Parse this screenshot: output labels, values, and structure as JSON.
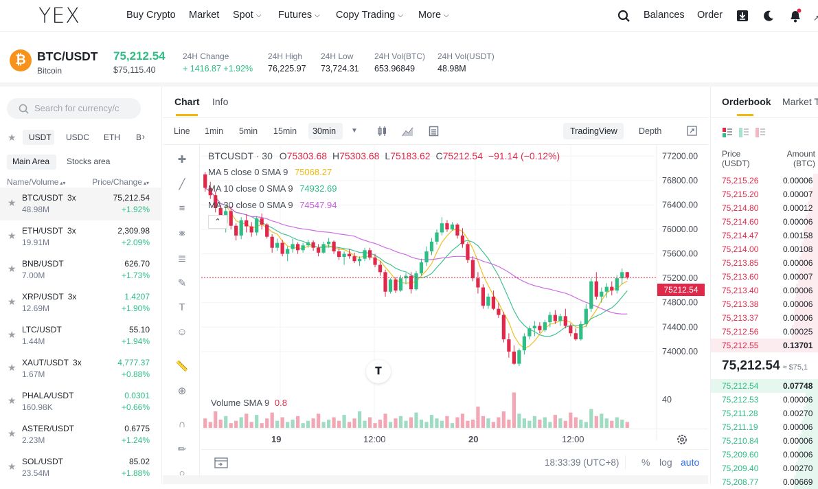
{
  "nav": {
    "logo": "YEX",
    "items": [
      {
        "label": "Buy Crypto",
        "has_menu": false
      },
      {
        "label": "Market",
        "has_menu": false
      },
      {
        "label": "Spot",
        "has_menu": true
      },
      {
        "label": "Futures",
        "has_menu": true
      },
      {
        "label": "Copy Trading",
        "has_menu": true
      },
      {
        "label": "More",
        "has_menu": true
      }
    ],
    "right": {
      "balances": "Balances",
      "order": "Order"
    }
  },
  "ticker": {
    "pair": "BTC/USDT",
    "name": "Bitcoin",
    "last_price": "75,212.54",
    "fiat_price": "$75,115.40",
    "stats": [
      {
        "label": "24H Change",
        "value": "+ 1416.87 +1.92%",
        "color": "#2ebd85"
      },
      {
        "label": "24H High",
        "value": "76,225.97"
      },
      {
        "label": "24H Low",
        "value": "73,724.31"
      },
      {
        "label": "24H Vol(BTC)",
        "value": "653.96849"
      },
      {
        "label": "24H Vol(USDT)",
        "value": "48.98M"
      }
    ]
  },
  "markets": {
    "search_placeholder": "Search for currency/c",
    "quote_tabs": [
      "USDT",
      "USDC",
      "ETH",
      "B"
    ],
    "area_tabs": [
      "Main Area",
      "Stocks area"
    ],
    "col_headers": {
      "left": "Name/Volume",
      "right": "Price/Change"
    },
    "rows": [
      {
        "pair": "BTC/USDT",
        "lev": "3x",
        "vol": "48.98M",
        "price": "75,212.54",
        "chg": "+1.92%",
        "price_color": "#1e2329"
      },
      {
        "pair": "ETH/USDT",
        "lev": "3x",
        "vol": "19.91M",
        "price": "2,309.98",
        "chg": "+2.09%",
        "price_color": "#1e2329"
      },
      {
        "pair": "BNB/USDT",
        "lev": "",
        "vol": "7.00M",
        "price": "626.70",
        "chg": "+1.73%",
        "price_color": "#1e2329"
      },
      {
        "pair": "XRP/USDT",
        "lev": "3x",
        "vol": "12.69M",
        "price": "1.4207",
        "chg": "+1.90%",
        "price_color": "#2ebd85"
      },
      {
        "pair": "LTC/USDT",
        "lev": "",
        "vol": "1.44M",
        "price": "55.10",
        "chg": "+1.94%",
        "price_color": "#1e2329"
      },
      {
        "pair": "XAUT/USDT",
        "lev": "3x",
        "vol": "1.67M",
        "price": "4,777.37",
        "chg": "+0.88%",
        "price_color": "#2ebd85"
      },
      {
        "pair": "PHALA/USDT",
        "lev": "",
        "vol": "160.98K",
        "price": "0.0301",
        "chg": "+0.66%",
        "price_color": "#2ebd85"
      },
      {
        "pair": "ASTER/USDT",
        "lev": "",
        "vol": "2.23M",
        "price": "0.6775",
        "chg": "+1.24%",
        "price_color": "#1e2329"
      },
      {
        "pair": "SOL/USDT",
        "lev": "",
        "vol": "23.54M",
        "price": "85.02",
        "chg": "+1.88%",
        "price_color": "#1e2329"
      }
    ]
  },
  "chart_panel": {
    "tabs": [
      "Chart",
      "Info"
    ],
    "timeframes": [
      "Line",
      "1min",
      "5min",
      "15min",
      "30min"
    ],
    "view_modes": [
      "TradingView",
      "Depth"
    ],
    "legend": {
      "symbol": "BTCUSDT · 30",
      "o": "75303.68",
      "h": "75303.68",
      "l": "75183.62",
      "c": "75212.54",
      "chg": "−91.14 (−0.12%)",
      "ma5_label": "MA 5 close 0 SMA 9",
      "ma5_value": "75068.27",
      "ma10_label": "MA 10 close 0 SMA 9",
      "ma10_value": "74932.69",
      "ma30_label": "MA 30 close 0 SMA 9",
      "ma30_value": "74547.94"
    },
    "volume_label": "Volume SMA 9",
    "volume_value": "0.8",
    "volume_axis": "40",
    "price_badge": "75212.54",
    "x_labels": [
      "19",
      "12:00",
      "20",
      "12:00"
    ],
    "time": "18:33:39 (UTC+8)",
    "bottom_opts": [
      "%",
      "log",
      "auto"
    ]
  },
  "chart_data": {
    "type": "candlestick",
    "title": "",
    "y_ticks": [
      77200,
      76800,
      76400,
      76000,
      75600,
      75200,
      74800,
      74400,
      74000
    ],
    "ylim": [
      73650,
      77350
    ],
    "x_ticks": [
      "19",
      "12:00",
      "20",
      "12:00"
    ],
    "candles": [
      [
        76900,
        76940,
        76620,
        76680
      ],
      [
        76680,
        76780,
        76500,
        76560
      ],
      [
        76560,
        76620,
        76280,
        76350
      ],
      [
        76350,
        76400,
        76050,
        76100
      ],
      [
        76100,
        76400,
        75950,
        76300
      ],
      [
        76300,
        76380,
        76000,
        76060
      ],
      [
        76060,
        76100,
        75820,
        75900
      ],
      [
        75900,
        76200,
        75840,
        76150
      ],
      [
        76150,
        76250,
        75950,
        76050
      ],
      [
        76050,
        76120,
        75880,
        75950
      ],
      [
        75950,
        76220,
        75900,
        76180
      ],
      [
        76180,
        76260,
        76000,
        76080
      ],
      [
        76080,
        76100,
        75850,
        75880
      ],
      [
        75880,
        75920,
        75620,
        75700
      ],
      [
        75700,
        75850,
        75650,
        75780
      ],
      [
        75780,
        75830,
        75560,
        75600
      ],
      [
        75600,
        75720,
        75480,
        75680
      ],
      [
        75680,
        75850,
        75620,
        75760
      ],
      [
        75760,
        75790,
        75600,
        75660
      ],
      [
        75660,
        75780,
        75620,
        75740
      ],
      [
        75740,
        75830,
        75700,
        75790
      ],
      [
        75790,
        75820,
        75650,
        75700
      ],
      [
        75700,
        75760,
        75560,
        75620
      ],
      [
        75620,
        75800,
        75600,
        75760
      ],
      [
        75760,
        75860,
        75700,
        75800
      ],
      [
        75800,
        75820,
        75600,
        75640
      ],
      [
        75640,
        75700,
        75500,
        75550
      ],
      [
        75550,
        75640,
        75420,
        75600
      ],
      [
        75600,
        75680,
        75520,
        75560
      ],
      [
        75560,
        75620,
        75450,
        75480
      ],
      [
        75480,
        75560,
        75400,
        75520
      ],
      [
        75520,
        75700,
        75480,
        75660
      ],
      [
        75660,
        75700,
        75500,
        75540
      ],
      [
        75540,
        75600,
        75380,
        75420
      ],
      [
        75420,
        75480,
        75240,
        75300
      ],
      [
        75300,
        75340,
        74900,
        74980
      ],
      [
        74980,
        75200,
        74950,
        75180
      ],
      [
        75180,
        75220,
        74960,
        75000
      ],
      [
        75000,
        75250,
        74980,
        75200
      ],
      [
        75200,
        75280,
        75100,
        75240
      ],
      [
        75240,
        75300,
        74950,
        75020
      ],
      [
        75020,
        75320,
        75000,
        75280
      ],
      [
        75280,
        75520,
        75240,
        75460
      ],
      [
        75460,
        75720,
        75400,
        75640
      ],
      [
        75640,
        75860,
        75580,
        75800
      ],
      [
        75800,
        76000,
        75750,
        75950
      ],
      [
        75950,
        76200,
        75900,
        76100
      ],
      [
        76100,
        76150,
        75960,
        76000
      ],
      [
        76000,
        76120,
        75980,
        76080
      ],
      [
        76080,
        76100,
        75850,
        75900
      ],
      [
        75900,
        76020,
        75700,
        75760
      ],
      [
        75760,
        75800,
        75450,
        75500
      ],
      [
        75500,
        75560,
        75150,
        75200
      ],
      [
        75200,
        75300,
        74950,
        75050
      ],
      [
        75050,
        75100,
        74700,
        74750
      ],
      [
        74750,
        74950,
        74700,
        74900
      ],
      [
        74900,
        75000,
        74680,
        74700
      ],
      [
        74700,
        74800,
        74550,
        74600
      ],
      [
        74600,
        74650,
        74150,
        74200
      ],
      [
        74200,
        74300,
        73900,
        74000
      ],
      [
        74000,
        74100,
        73780,
        73800
      ],
      [
        73800,
        74050,
        73760,
        74020
      ],
      [
        74020,
        74300,
        73950,
        74250
      ],
      [
        74250,
        74420,
        74200,
        74380
      ],
      [
        74380,
        74500,
        74250,
        74420
      ],
      [
        74420,
        74480,
        74300,
        74350
      ],
      [
        74350,
        74520,
        74320,
        74480
      ],
      [
        74480,
        74650,
        74400,
        74600
      ],
      [
        74600,
        74680,
        74450,
        74500
      ],
      [
        74500,
        74620,
        74420,
        74580
      ],
      [
        74580,
        74700,
        74380,
        74420
      ],
      [
        74420,
        74460,
        74250,
        74300
      ],
      [
        74300,
        74380,
        74180,
        74200
      ],
      [
        74200,
        74500,
        74180,
        74450
      ],
      [
        74450,
        74780,
        74400,
        74700
      ],
      [
        74700,
        75200,
        74650,
        75150
      ],
      [
        75150,
        75300,
        74850,
        74900
      ],
      [
        74900,
        75050,
        74800,
        74980
      ],
      [
        74980,
        75120,
        74880,
        75060
      ],
      [
        75060,
        75150,
        74920,
        75000
      ],
      [
        75000,
        75250,
        74950,
        75200
      ],
      [
        75200,
        75360,
        75100,
        75300
      ],
      [
        75300,
        75303.68,
        75183.62,
        75212.54
      ]
    ],
    "ma_series": [
      {
        "name": "MA 5",
        "color": "#f0b90b"
      },
      {
        "name": "MA 10",
        "color": "#2ebd85"
      },
      {
        "name": "MA 30",
        "color": "#c85ce0"
      }
    ],
    "volumes": [
      8,
      5,
      14,
      7,
      10,
      4,
      6,
      9,
      12,
      5,
      11,
      4,
      8,
      13,
      6,
      9,
      5,
      7,
      10,
      4,
      6,
      8,
      12,
      5,
      7,
      9,
      6,
      11,
      5,
      8,
      14,
      6,
      9,
      4,
      7,
      12,
      5,
      8,
      10,
      6,
      9,
      13,
      7,
      5,
      11,
      8,
      6,
      10,
      4,
      9,
      12,
      6,
      7,
      18,
      10,
      8,
      5,
      9,
      14,
      7,
      30,
      12,
      8,
      6,
      10,
      7,
      9,
      5,
      11,
      8,
      6,
      13,
      9,
      7,
      5,
      16,
      10,
      12,
      8,
      6,
      9,
      7,
      5
    ],
    "current_price": 75212.54
  },
  "orderbook": {
    "tabs": [
      "Orderbook",
      "Market T"
    ],
    "col_price": "Price\n(USDT)",
    "col_price_l1": "Price",
    "col_price_l2": "(USDT)",
    "col_amt_l1": "Amount",
    "col_amt_l2": "(BTC)",
    "asks": [
      {
        "price": "75,215.26",
        "amount": "0.00006",
        "depth": 0.05
      },
      {
        "price": "75,215.20",
        "amount": "0.00007",
        "depth": 0.08
      },
      {
        "price": "75,214.80",
        "amount": "0.00012",
        "depth": 0.1
      },
      {
        "price": "75,214.60",
        "amount": "0.00006",
        "depth": 0.12
      },
      {
        "price": "75,214.47",
        "amount": "0.00158",
        "depth": 0.14
      },
      {
        "price": "75,214.00",
        "amount": "0.00108",
        "depth": 0.16
      },
      {
        "price": "75,213.85",
        "amount": "0.00006",
        "depth": 0.18
      },
      {
        "price": "75,213.60",
        "amount": "0.00007",
        "depth": 0.19
      },
      {
        "price": "75,213.40",
        "amount": "0.00006",
        "depth": 0.21
      },
      {
        "price": "75,213.38",
        "amount": "0.00006",
        "depth": 0.22
      },
      {
        "price": "75,213.37",
        "amount": "0.00006",
        "depth": 0.23
      },
      {
        "price": "75,212.56",
        "amount": "0.00025",
        "depth": 0.25
      },
      {
        "price": "75,212.55",
        "amount": "0.13701",
        "depth": 1.0
      }
    ],
    "mid_price": "75,212.54",
    "mid_fiat": "≈ $75,1",
    "bids": [
      {
        "price": "75,212.54",
        "amount": "0.07748",
        "depth": 1.0
      },
      {
        "price": "75,212.53",
        "amount": "0.00006",
        "depth": 0.12
      },
      {
        "price": "75,211.28",
        "amount": "0.00270",
        "depth": 0.14
      },
      {
        "price": "75,211.19",
        "amount": "0.00006",
        "depth": 0.16
      },
      {
        "price": "75,210.84",
        "amount": "0.00006",
        "depth": 0.18
      },
      {
        "price": "75,209.60",
        "amount": "0.00006",
        "depth": 0.19
      },
      {
        "price": "75,209.40",
        "amount": "0.00270",
        "depth": 0.21
      },
      {
        "price": "75,208.77",
        "amount": "0.00669",
        "depth": 0.23
      }
    ]
  },
  "colors": {
    "up": "#2ebd85",
    "down": "#e0294a",
    "accent": "#f0b90b",
    "link": "#2e6be6"
  }
}
